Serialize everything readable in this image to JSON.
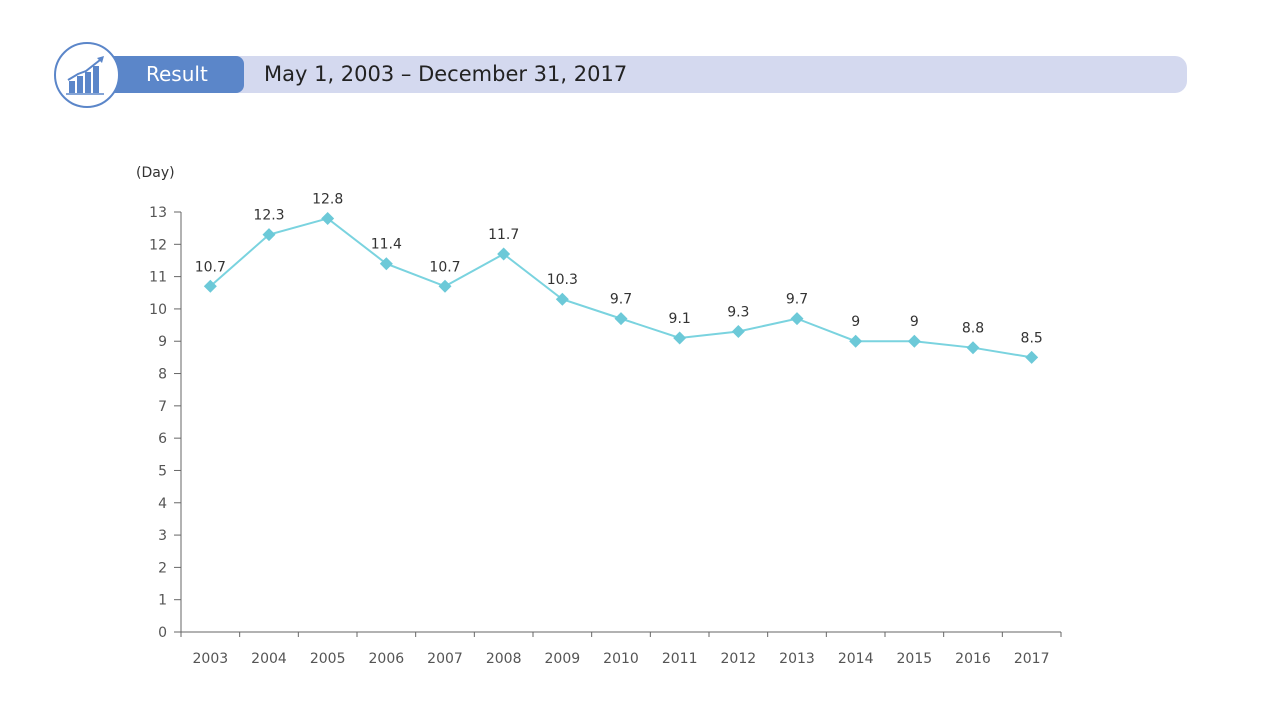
{
  "header": {
    "badge_label": "Result",
    "period": "May 1, 2003 – December 31, 2017",
    "icon": "growth-chart-icon"
  },
  "colors": {
    "accent": "#5b86c9",
    "header_bar": "#d4d9ef",
    "series_line": "#7ad3df",
    "series_marker": "#6cc9d8",
    "axis": "#666666"
  },
  "chart_data": {
    "type": "line",
    "ylabel": "(Day)",
    "ylim": [
      0,
      13
    ],
    "yticks": [
      0,
      1,
      2,
      3,
      4,
      5,
      6,
      7,
      8,
      9,
      10,
      11,
      12,
      13
    ],
    "categories": [
      "2003",
      "2004",
      "2005",
      "2006",
      "2007",
      "2008",
      "2009",
      "2010",
      "2011",
      "2012",
      "2013",
      "2014",
      "2015",
      "2016",
      "2017"
    ],
    "series": [
      {
        "values": [
          10.7,
          12.3,
          12.8,
          11.4,
          10.7,
          11.7,
          10.3,
          9.7,
          9.1,
          9.3,
          9.7,
          9,
          9,
          8.8,
          8.5
        ],
        "marker": "diamond"
      }
    ],
    "data_labels": [
      "10.7",
      "12.3",
      "12.8",
      "11.4",
      "10.7",
      "11.7",
      "10.3",
      "9.7",
      "9.1",
      "9.3",
      "9.7",
      "9",
      "9",
      "8.8",
      "8.5"
    ],
    "grid": false,
    "legend": "none"
  }
}
